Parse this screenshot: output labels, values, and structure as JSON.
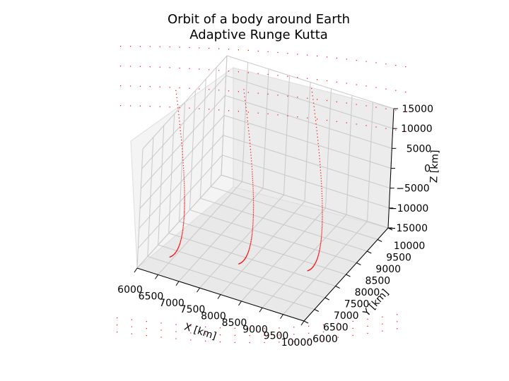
{
  "chart_data": {
    "type": "scatter",
    "projection": "3d",
    "title": "Orbit of a body around Earth",
    "subtitle": "Adaptive Runge Kutta",
    "xlabel": "X [km]",
    "ylabel": "Y [km]",
    "zlabel": "Z [km]",
    "xlim": [
      6000,
      10000
    ],
    "ylim": [
      6000,
      10000
    ],
    "zlim": [
      -15000,
      15000
    ],
    "x_ticks": [
      "6000",
      "6500",
      "7000",
      "7500",
      "8000",
      "8500",
      "9000",
      "9500",
      "10000"
    ],
    "y_ticks": [
      "6000",
      "6500",
      "7000",
      "7500",
      "8000",
      "8500",
      "9000",
      "9500",
      "10000"
    ],
    "z_ticks": [
      "−15000",
      "−10000",
      "−5000",
      "0",
      "5000",
      "10000",
      "15000"
    ],
    "grid": true,
    "marker_color": "#ff0000",
    "series": [
      {
        "points": [
          {
            "x": 6000,
            "y": 7500,
            "z": 21000
          },
          {
            "x": 6000,
            "y": 7500,
            "z": 15000
          },
          {
            "x": 6000,
            "y": 7500,
            "z": 9000
          },
          {
            "x": 6000,
            "y": 7500,
            "z": 4000
          },
          {
            "x": 6000,
            "y": 7500,
            "z": 0
          },
          {
            "x": 6000,
            "y": 7500,
            "z": -5000
          },
          {
            "x": 6000,
            "y": 7500,
            "z": -10000
          },
          {
            "x": 6000,
            "y": 7500,
            "z": -15000
          },
          {
            "x": 6000,
            "y": 7500,
            "z": -20000
          },
          {
            "x": 7400,
            "y": 8000,
            "z": 22000
          },
          {
            "x": 7400,
            "y": 8000,
            "z": 16000
          },
          {
            "x": 7400,
            "y": 8000,
            "z": 10000
          },
          {
            "x": 7400,
            "y": 8000,
            "z": 5000
          },
          {
            "x": 7400,
            "y": 8000,
            "z": 0
          },
          {
            "x": 7400,
            "y": 8000,
            "z": -5000
          },
          {
            "x": 7400,
            "y": 8000,
            "z": -10000
          },
          {
            "x": 7400,
            "y": 8000,
            "z": -15000
          },
          {
            "x": 7400,
            "y": 8000,
            "z": -20000
          },
          {
            "x": 8800,
            "y": 8500,
            "z": 23000
          },
          {
            "x": 8800,
            "y": 8500,
            "z": 17000
          },
          {
            "x": 8800,
            "y": 8500,
            "z": 11000
          },
          {
            "x": 8800,
            "y": 8500,
            "z": 5000
          },
          {
            "x": 8800,
            "y": 8500,
            "z": 0
          },
          {
            "x": 8800,
            "y": 8500,
            "z": -5000
          },
          {
            "x": 8800,
            "y": 8500,
            "z": -10000
          },
          {
            "x": 8800,
            "y": 8500,
            "z": -15000
          },
          {
            "x": 8800,
            "y": 8500,
            "z": -20000
          }
        ]
      }
    ]
  }
}
